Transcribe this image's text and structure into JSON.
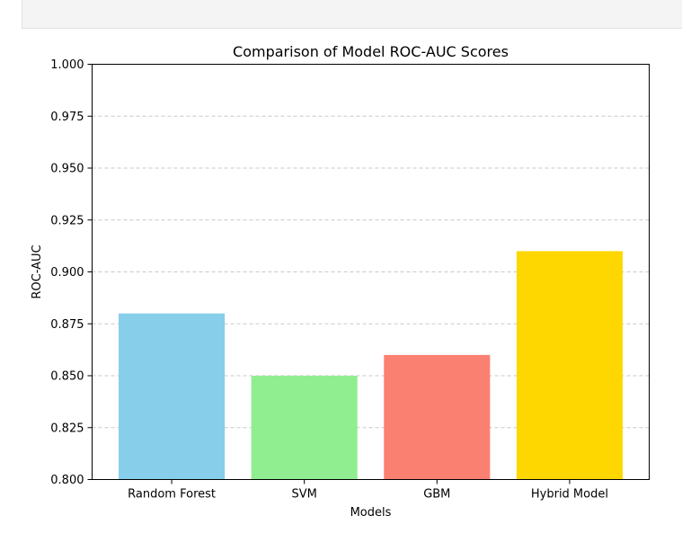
{
  "chart_data": {
    "type": "bar",
    "title": "Comparison of Model ROC-AUC Scores",
    "xlabel": "Models",
    "ylabel": "ROC-AUC",
    "categories": [
      "Random Forest",
      "SVM",
      "GBM",
      "Hybrid Model"
    ],
    "values": [
      0.88,
      0.85,
      0.86,
      0.91
    ],
    "colors": [
      "#87CEEB",
      "#90EE90",
      "#FA8072",
      "#FFD700"
    ],
    "ylim": [
      0.8,
      1.0
    ],
    "yticks": [
      "0.800",
      "0.825",
      "0.850",
      "0.875",
      "0.900",
      "0.925",
      "0.950",
      "0.975",
      "1.000"
    ],
    "grid": "y-dashed",
    "legend": "none"
  }
}
